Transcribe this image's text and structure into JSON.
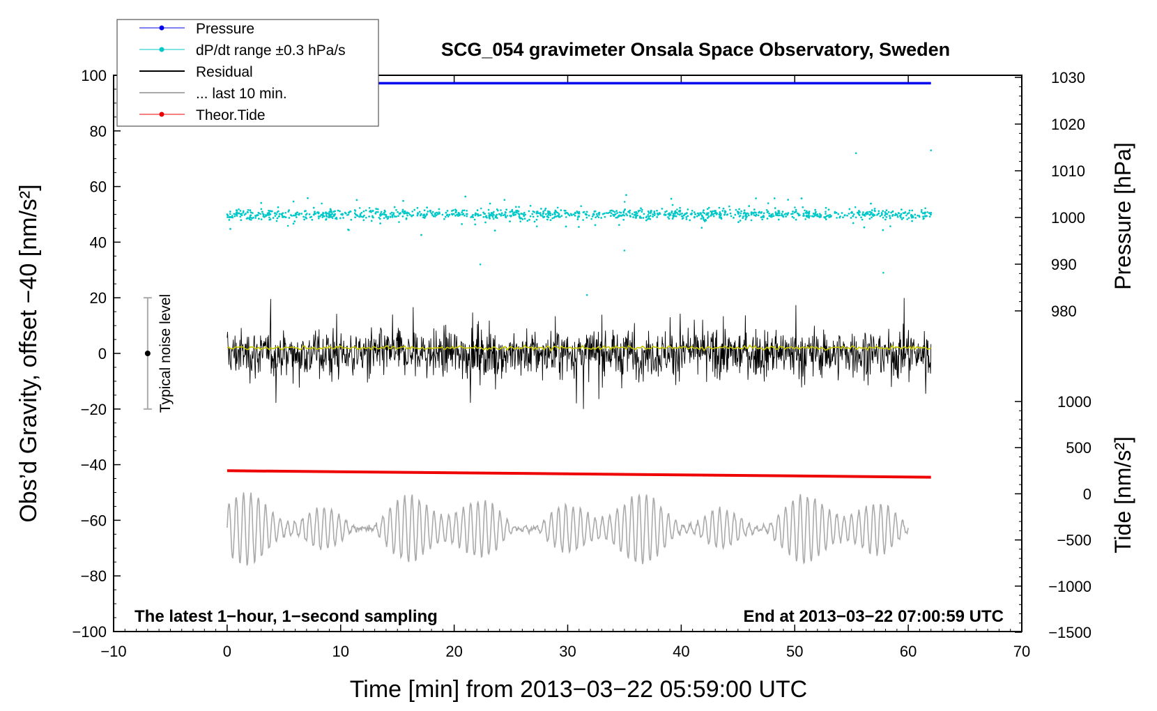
{
  "chart_data": {
    "type": "line",
    "title": "SCG_054 gravimeter Onsala Space Observatory, Sweden",
    "xlabel": "Time [min] from 2013−03−22 05:59:00 UTC",
    "ylabel_left": "Obs’d Gravity, offset −40 [nm/s²]",
    "ylabel_pressure": "Pressure [hPa]",
    "ylabel_tide": "Tide [nm/s²]",
    "xlim": [
      -10,
      70
    ],
    "ylim_left": [
      -100,
      100
    ],
    "xticks": [
      -10,
      0,
      10,
      20,
      30,
      40,
      50,
      60,
      70
    ],
    "xtick_labels": [
      "−10",
      "0",
      "10",
      "20",
      "30",
      "40",
      "50",
      "60",
      "70"
    ],
    "yticks_left": [
      -100,
      -80,
      -60,
      -40,
      -20,
      0,
      20,
      40,
      60,
      80,
      100
    ],
    "ytick_labels_left": [
      "−100",
      "−80",
      "−60",
      "−40",
      "−20",
      "0",
      "20",
      "40",
      "60",
      "80",
      "100"
    ],
    "pressure_axis": {
      "range": [
        980,
        1030
      ],
      "ticks": [
        980,
        990,
        1000,
        1010,
        1020,
        1030
      ],
      "tick_labels": [
        "980",
        "990",
        "1000",
        "1010",
        "1020",
        "1030"
      ]
    },
    "tide_axis": {
      "range": [
        -1500,
        1000
      ],
      "ticks": [
        -1500,
        -1000,
        -500,
        0,
        500,
        1000
      ],
      "tick_labels": [
        "−1500",
        "−1000",
        "−500",
        "0",
        "500",
        "1000"
      ]
    },
    "legend": {
      "placement": "top-left",
      "entries": [
        {
          "label": "Pressure",
          "color": "#0000ee",
          "style": "line-dot"
        },
        {
          "label": "dP/dt range ±0.3 hPa/s",
          "color": "#00c8c8",
          "style": "line-dot"
        },
        {
          "label": "Residual",
          "color": "#000000",
          "style": "line"
        },
        {
          "label": "... last 10 min.",
          "color": "#aaaaaa",
          "style": "line"
        },
        {
          "label": "Theor.Tide",
          "color": "#ee0000",
          "style": "line-dot"
        }
      ]
    },
    "series": [
      {
        "name": "Pressure",
        "axis": "pressure",
        "color": "#0000ee",
        "x": [
          0,
          62
        ],
        "values": [
          1029.2,
          1029.2
        ],
        "note": "flat near 1029 hPa (plotted near top)"
      },
      {
        "name": "dP/dt range ±0.3 hPa/s",
        "axis": "left",
        "color": "#00c8c8",
        "x_range": [
          0,
          62
        ],
        "center": 50,
        "typical_spread": 3,
        "outliers": [
          [
            22.3,
            32
          ],
          [
            31.7,
            21
          ],
          [
            55.4,
            72
          ],
          [
            62,
            73
          ],
          [
            57.8,
            29
          ],
          [
            35,
            37
          ]
        ]
      },
      {
        "name": "Residual",
        "axis": "left",
        "color": "#000000",
        "x_range": [
          0,
          62
        ],
        "center": 0,
        "amplitude_range": [
          -20,
          23
        ]
      },
      {
        "name": "Residual running mean",
        "axis": "left",
        "color": "#c8c800",
        "x_range": [
          0,
          62
        ],
        "values_approx": 2
      },
      {
        "name": "... last 10 min.",
        "axis": "left",
        "color": "#aaaaaa",
        "x_range": [
          0,
          60
        ],
        "center": -63,
        "amplitude_range": [
          -82,
          -42
        ]
      },
      {
        "name": "Theor.Tide",
        "axis": "tide",
        "color": "#ee0000",
        "x": [
          0,
          62
        ],
        "values": [
          250,
          180
        ]
      }
    ],
    "noise_indicator": {
      "label": "Typical noise level",
      "x": -7,
      "center": 0,
      "range": [
        -20,
        20
      ]
    },
    "annotations": {
      "bottom_left": "The latest 1−hour, 1−second sampling",
      "bottom_right": "End at 2013−03−22 07:00:59 UTC"
    }
  }
}
